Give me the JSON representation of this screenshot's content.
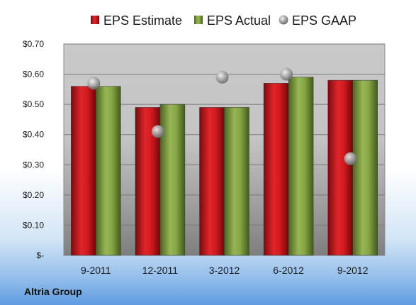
{
  "company": "Altria Group",
  "chart_data": {
    "type": "bar",
    "categories": [
      "9-2011",
      "12-2011",
      "3-2012",
      "6-2012",
      "9-2012"
    ],
    "series": [
      {
        "name": "EPS Estimate",
        "kind": "bar",
        "color": "#c8151b",
        "values": [
          0.56,
          0.49,
          0.49,
          0.57,
          0.58
        ]
      },
      {
        "name": "EPS Actual",
        "kind": "bar",
        "color": "#7a9a3a",
        "values": [
          0.56,
          0.5,
          0.49,
          0.59,
          0.58
        ]
      },
      {
        "name": "EPS GAAP",
        "kind": "scatter",
        "color": "#a6a6a6",
        "values": [
          0.57,
          0.41,
          0.59,
          0.6,
          0.32
        ]
      }
    ],
    "y_ticks": [
      {
        "value": 0.0,
        "label": "$-"
      },
      {
        "value": 0.1,
        "label": "$0.10"
      },
      {
        "value": 0.2,
        "label": "$0.20"
      },
      {
        "value": 0.3,
        "label": "$0.30"
      },
      {
        "value": 0.4,
        "label": "$0.40"
      },
      {
        "value": 0.5,
        "label": "$0.50"
      },
      {
        "value": 0.6,
        "label": "$0.60"
      },
      {
        "value": 0.7,
        "label": "$0.70"
      }
    ],
    "ylim": [
      0,
      0.7
    ],
    "grid": true,
    "legend_position": "top"
  }
}
